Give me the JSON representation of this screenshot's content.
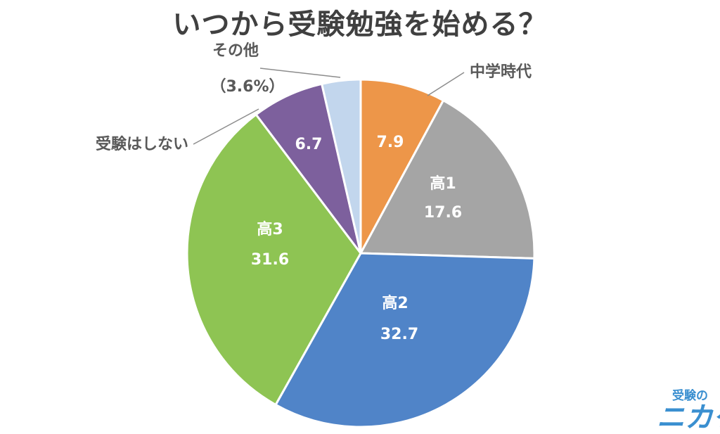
{
  "title": "いつから受験勉強を始める？",
  "chart_data": {
    "type": "pie",
    "title": "いつから受験勉強を始める？",
    "start_angle_deg": 0,
    "direction": "clockwise",
    "slices": [
      {
        "label": "中学時代",
        "value": 7.9,
        "color": "#ed9649",
        "label_outside": true
      },
      {
        "label": "高1",
        "value": 17.6,
        "color": "#a5a5a5"
      },
      {
        "label": "高2",
        "value": 32.7,
        "color": "#5084c8"
      },
      {
        "label": "高3",
        "value": 31.6,
        "color": "#8ec453"
      },
      {
        "label": "受験はしない",
        "value": 6.7,
        "color": "#7d609d",
        "label_outside": true
      },
      {
        "label": "その他",
        "value": 3.6,
        "value_text": "（3.6%）",
        "color": "#c2d6ed",
        "label_outside": true
      }
    ]
  },
  "logo": {
    "top_text": "受験の",
    "bottom_text": "ニカケ"
  },
  "colors": {
    "title": "#404040",
    "outside_label": "#595959",
    "inside_label": "#ffffff",
    "leader_line": "#8c8c8c"
  }
}
